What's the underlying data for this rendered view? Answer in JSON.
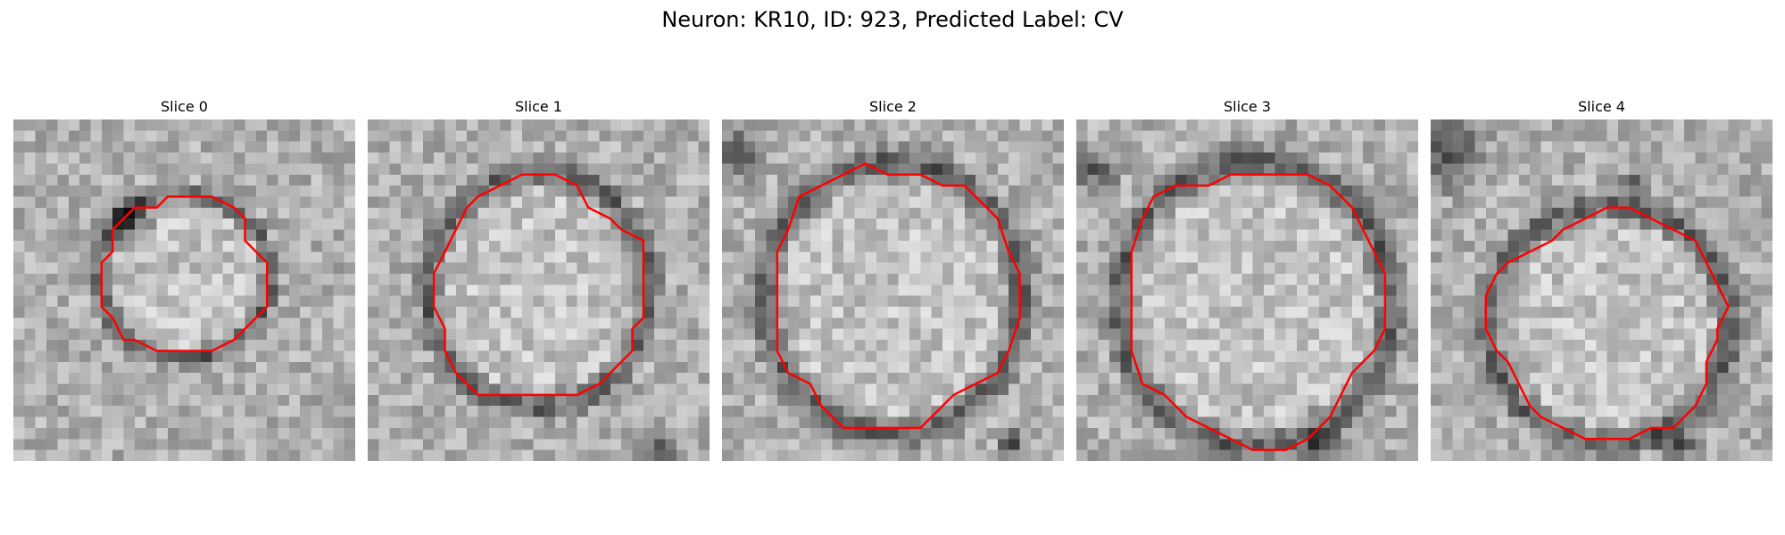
{
  "figure": {
    "title": "Neuron: KR10, ID: 923, Predicted Label: CV"
  },
  "panels": [
    {
      "title": "Slice 0"
    },
    {
      "title": "Slice 1"
    },
    {
      "title": "Slice 2"
    },
    {
      "title": "Slice 3"
    },
    {
      "title": "Slice 4"
    }
  ],
  "colors": {
    "contour": "#ff0000",
    "image_colormap": "grayscale"
  }
}
